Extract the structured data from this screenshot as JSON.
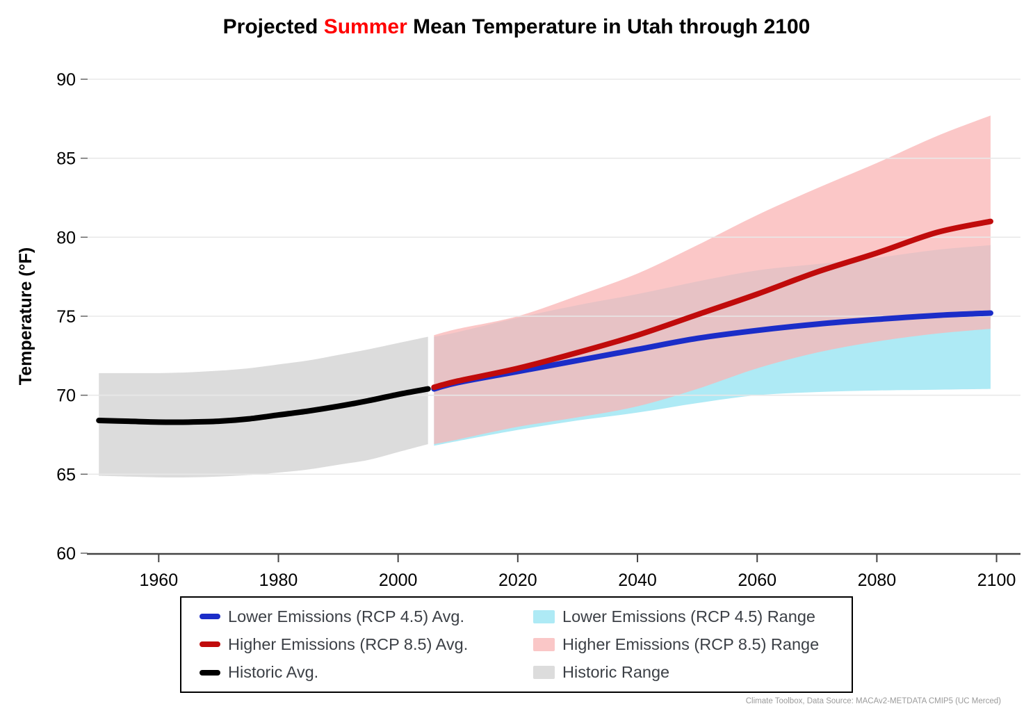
{
  "title": {
    "prefix": "Projected ",
    "highlight": "Summer",
    "suffix": " Mean Temperature in Utah through 2100",
    "highlight_color": "#ff0000"
  },
  "attribution": "Climate Toolbox, Data Source: MACAv2-METDATA CMIP5 (UC Merced)",
  "legend": {
    "columns": [
      [
        {
          "label": "Lower Emissions (RCP 4.5) Avg.",
          "marker": "line",
          "color": "#1b2dc8"
        },
        {
          "label": "Higher Emissions (RCP 8.5) Avg.",
          "marker": "line",
          "color": "#c00b0b"
        },
        {
          "label": "Historic Avg.",
          "marker": "line",
          "color": "#000000"
        }
      ],
      [
        {
          "label": "Lower Emissions (RCP 4.5) Range",
          "marker": "patch",
          "color": "#aeeaf5"
        },
        {
          "label": "Higher Emissions (RCP 8.5) Range",
          "marker": "patch",
          "color": "#fac7c7"
        },
        {
          "label": "Historic Range",
          "marker": "patch",
          "color": "#dcdcdc"
        }
      ]
    ]
  },
  "chart_data": {
    "type": "line",
    "title": "Projected Summer Mean Temperature in Utah through 2100",
    "xlabel": "",
    "ylabel": "Temperature (°F)",
    "xlim": [
      1948,
      2104
    ],
    "ylim": [
      60,
      90
    ],
    "x_ticks": [
      1960,
      1980,
      2000,
      2020,
      2040,
      2060,
      2080,
      2100
    ],
    "y_ticks": [
      60,
      65,
      70,
      75,
      80,
      85,
      90
    ],
    "grid": {
      "axis": "y",
      "values": [
        65,
        70,
        75,
        80,
        85,
        90
      ],
      "color": "#e8e8e8"
    },
    "legend_position": "bottom",
    "series": [
      {
        "name": "Historic Range",
        "type": "band",
        "color": "#dcdcdc",
        "opacity": 1,
        "x": [
          1950,
          1955,
          1960,
          1965,
          1970,
          1975,
          1980,
          1985,
          1990,
          1995,
          2000,
          2005
        ],
        "upper": [
          71.4,
          71.4,
          71.4,
          71.45,
          71.55,
          71.7,
          71.95,
          72.2,
          72.55,
          72.9,
          73.3,
          73.7
        ],
        "lower": [
          64.9,
          64.85,
          64.8,
          64.8,
          64.85,
          64.95,
          65.1,
          65.3,
          65.6,
          65.9,
          66.4,
          66.9
        ]
      },
      {
        "name": "Lower Emissions (RCP 4.5) Range",
        "type": "band",
        "color": "#aeeaf5",
        "opacity": 1,
        "x": [
          2006,
          2010,
          2020,
          2030,
          2040,
          2050,
          2060,
          2070,
          2080,
          2090,
          2099
        ],
        "upper": [
          73.7,
          74.0,
          74.9,
          75.7,
          76.4,
          77.2,
          77.9,
          78.3,
          78.7,
          79.2,
          79.5
        ],
        "lower": [
          66.8,
          67.1,
          67.8,
          68.4,
          68.9,
          69.5,
          70.0,
          70.2,
          70.3,
          70.35,
          70.4
        ]
      },
      {
        "name": "Higher Emissions (RCP 8.5) Range",
        "type": "band",
        "color": "#f9b4b4",
        "opacity": 0.75,
        "x": [
          2006,
          2010,
          2020,
          2030,
          2040,
          2050,
          2060,
          2070,
          2080,
          2090,
          2099
        ],
        "upper": [
          73.8,
          74.2,
          75.0,
          76.3,
          77.7,
          79.5,
          81.4,
          83.1,
          84.7,
          86.4,
          87.7
        ],
        "lower": [
          66.9,
          67.2,
          68.0,
          68.6,
          69.3,
          70.4,
          71.7,
          72.7,
          73.4,
          73.9,
          74.2
        ]
      },
      {
        "name": "Historic Avg.",
        "type": "line",
        "color": "#000000",
        "width": 8,
        "x": [
          1950,
          1955,
          1960,
          1965,
          1970,
          1975,
          1980,
          1985,
          1990,
          1995,
          2000,
          2005
        ],
        "y": [
          68.4,
          68.35,
          68.3,
          68.3,
          68.35,
          68.5,
          68.75,
          69.0,
          69.3,
          69.65,
          70.05,
          70.4
        ]
      },
      {
        "name": "Lower Emissions (RCP 4.5) Avg.",
        "type": "line",
        "color": "#1b2dc8",
        "width": 8,
        "x": [
          2006,
          2010,
          2020,
          2030,
          2040,
          2050,
          2060,
          2070,
          2080,
          2090,
          2099
        ],
        "y": [
          70.4,
          70.8,
          71.5,
          72.2,
          72.9,
          73.6,
          74.1,
          74.5,
          74.8,
          75.05,
          75.2
        ]
      },
      {
        "name": "Higher Emissions (RCP 8.5) Avg.",
        "type": "line",
        "color": "#c00b0b",
        "width": 8,
        "x": [
          2006,
          2010,
          2020,
          2030,
          2040,
          2050,
          2060,
          2070,
          2080,
          2090,
          2099
        ],
        "y": [
          70.5,
          70.9,
          71.7,
          72.7,
          73.8,
          75.1,
          76.4,
          77.8,
          79.0,
          80.3,
          81.0
        ]
      }
    ]
  }
}
